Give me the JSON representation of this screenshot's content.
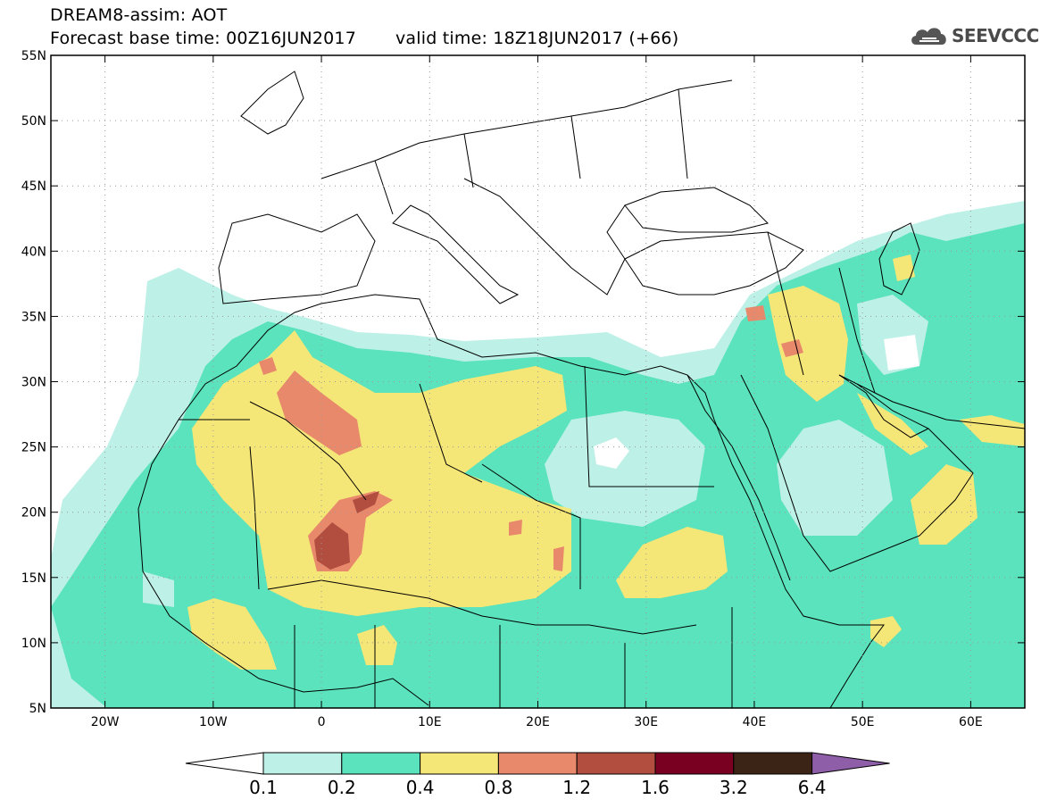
{
  "title": {
    "line1": "DREAM8-assim: AOT",
    "base_time": "Forecast base time: 00Z16JUN2017",
    "valid_time": "valid time: 18Z18JUN2017 (+66)"
  },
  "logo": {
    "text": "SEEVCCC",
    "icon": "cloud-icon"
  },
  "map": {
    "lon_range": [
      -25,
      65
    ],
    "lat_range": [
      5,
      55
    ],
    "grid": "dotted",
    "lat_ticks": [
      {
        "value": 55,
        "label": "55N"
      },
      {
        "value": 50,
        "label": "50N"
      },
      {
        "value": 45,
        "label": "45N"
      },
      {
        "value": 40,
        "label": "40N"
      },
      {
        "value": 35,
        "label": "35N"
      },
      {
        "value": 30,
        "label": "30N"
      },
      {
        "value": 25,
        "label": "25N"
      },
      {
        "value": 20,
        "label": "20N"
      },
      {
        "value": 15,
        "label": "15N"
      },
      {
        "value": 10,
        "label": "10N"
      },
      {
        "value": 5,
        "label": "5N"
      }
    ],
    "lon_ticks": [
      {
        "value": -20,
        "label": "20W"
      },
      {
        "value": -10,
        "label": "10W"
      },
      {
        "value": 0,
        "label": "0"
      },
      {
        "value": 10,
        "label": "10E"
      },
      {
        "value": 20,
        "label": "20E"
      },
      {
        "value": 30,
        "label": "30E"
      },
      {
        "value": 40,
        "label": "40E"
      },
      {
        "value": 50,
        "label": "50E"
      },
      {
        "value": 60,
        "label": "60E"
      }
    ]
  },
  "colorbar": {
    "labels": [
      "0.1",
      "0.2",
      "0.4",
      "0.8",
      "1.2",
      "1.6",
      "3.2",
      "6.4"
    ],
    "colors": [
      "#ffffff",
      "#bdf0e6",
      "#5ae3bc",
      "#f5e678",
      "#e8896c",
      "#b24e3f",
      "#7a0022",
      "#3b2316",
      "#8e5fa8"
    ]
  }
}
